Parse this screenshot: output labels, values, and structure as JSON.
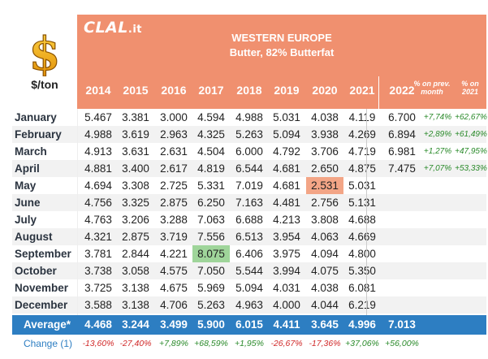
{
  "unit_label": "$/ton",
  "header": {
    "logo": "CLAL",
    "logo_domain": ".it",
    "title": "WESTERN EUROPE",
    "subtitle": "Butter, 82% Butterfat",
    "years": [
      "2014",
      "2015",
      "2016",
      "2017",
      "2018",
      "2019",
      "2020",
      "2021",
      "2022"
    ],
    "pct_prev_month": "% on prev. month",
    "pct_2021": "% on 2021"
  },
  "months": [
    {
      "name": "January",
      "values": [
        "5.467",
        "3.381",
        "3.000",
        "4.594",
        "4.988",
        "5.031",
        "4.038",
        "4.119"
      ],
      "v2022": "6.700",
      "pct_prev": "+7,74%",
      "pct_2021": "+62,67%"
    },
    {
      "name": "February",
      "values": [
        "4.988",
        "3.619",
        "2.963",
        "4.325",
        "5.263",
        "5.094",
        "3.938",
        "4.269"
      ],
      "v2022": "6.894",
      "pct_prev": "+2,89%",
      "pct_2021": "+61,49%"
    },
    {
      "name": "March",
      "values": [
        "4.913",
        "3.631",
        "2.631",
        "4.504",
        "6.000",
        "4.792",
        "3.706",
        "4.719"
      ],
      "v2022": "6.981",
      "pct_prev": "+1,27%",
      "pct_2021": "+47,95%"
    },
    {
      "name": "April",
      "values": [
        "4.881",
        "3.400",
        "2.617",
        "4.819",
        "6.544",
        "4.681",
        "2.650",
        "4.875"
      ],
      "v2022": "7.475",
      "pct_prev": "+7,07%",
      "pct_2021": "+53,33%"
    },
    {
      "name": "May",
      "values": [
        "4.694",
        "3.308",
        "2.725",
        "5.331",
        "7.019",
        "4.681",
        "2.531",
        "5.031"
      ]
    },
    {
      "name": "June",
      "values": [
        "4.756",
        "3.325",
        "2.875",
        "6.250",
        "7.163",
        "4.481",
        "2.756",
        "5.131"
      ]
    },
    {
      "name": "July",
      "values": [
        "4.763",
        "3.206",
        "3.288",
        "7.063",
        "6.688",
        "4.213",
        "3.808",
        "4.688"
      ]
    },
    {
      "name": "August",
      "values": [
        "4.321",
        "2.875",
        "3.719",
        "7.556",
        "6.513",
        "3.954",
        "4.063",
        "4.669"
      ]
    },
    {
      "name": "September",
      "values": [
        "3.781",
        "2.844",
        "4.221",
        "8.075",
        "6.406",
        "3.975",
        "4.094",
        "4.800"
      ]
    },
    {
      "name": "October",
      "values": [
        "3.738",
        "3.058",
        "4.575",
        "7.050",
        "5.544",
        "3.994",
        "4.075",
        "5.350"
      ]
    },
    {
      "name": "November",
      "values": [
        "3.725",
        "3.138",
        "4.675",
        "5.969",
        "5.094",
        "4.031",
        "4.038",
        "6.081"
      ]
    },
    {
      "name": "December",
      "values": [
        "3.588",
        "3.138",
        "4.706",
        "5.263",
        "4.963",
        "4.000",
        "4.044",
        "6.219"
      ]
    }
  ],
  "highlights": {
    "max": {
      "month": "September",
      "year": "2017",
      "color": "#9fd59a"
    },
    "min": {
      "month": "May",
      "year": "2020",
      "color": "#f3a586"
    }
  },
  "average": {
    "label": "Average*",
    "values": [
      "4.468",
      "3.244",
      "3.499",
      "5.900",
      "6.015",
      "4.411",
      "3.645",
      "4.996",
      "7.013"
    ]
  },
  "change": {
    "label": "Change (1)",
    "values": [
      "-13,60%",
      "-27,40%",
      "+7,89%",
      "+68,59%",
      "+1,95%",
      "-26,67%",
      "-17,36%",
      "+37,06%",
      "+56,00%"
    ]
  },
  "colors": {
    "header_bg": "#f0906f",
    "average_bg": "#2d7ec2",
    "positive": "#2a8a2a",
    "negative": "#d12a2a"
  }
}
